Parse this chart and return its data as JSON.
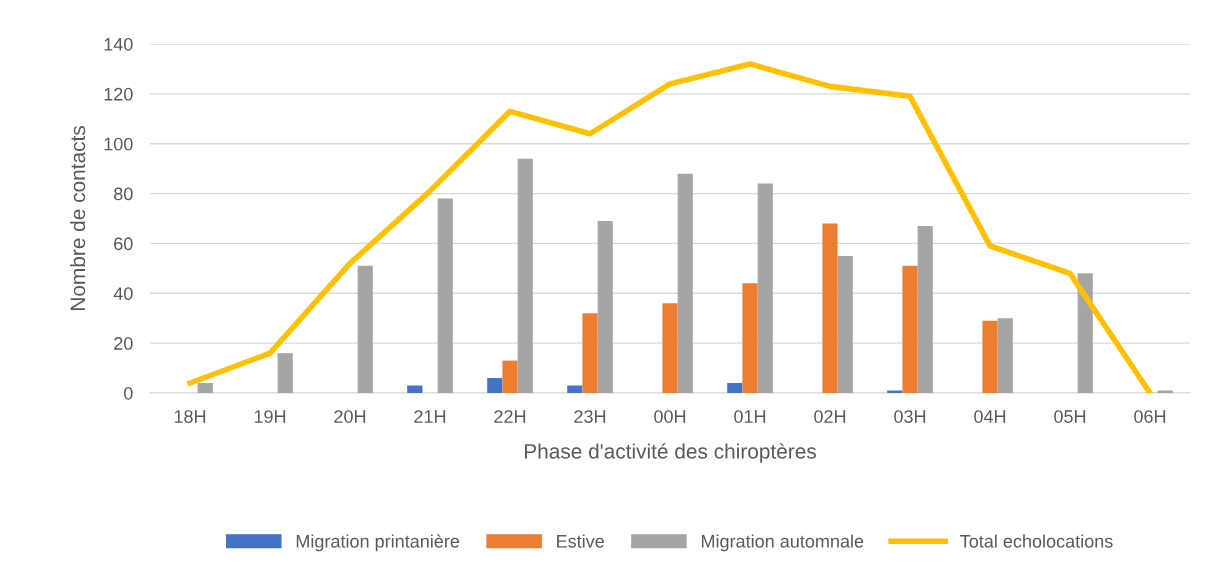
{
  "chart_data": {
    "type": "bar",
    "xlabel": "Phase d'activité des chiroptères",
    "ylabel": "Nombre de contacts",
    "categories": [
      "18H",
      "19H",
      "20H",
      "21H",
      "22H",
      "23H",
      "00H",
      "01H",
      "02H",
      "03H",
      "04H",
      "05H",
      "06H"
    ],
    "series": [
      {
        "name": "Migration printanière",
        "color": "#4472c4",
        "values": [
          0,
          0,
          0,
          3,
          6,
          3,
          0,
          4,
          0,
          1,
          0,
          0,
          0
        ]
      },
      {
        "name": "Estive",
        "color": "#ed7d31",
        "values": [
          0,
          0,
          0,
          0,
          13,
          32,
          36,
          44,
          68,
          51,
          29,
          0,
          0
        ]
      },
      {
        "name": "Migration automnale",
        "color": "#a5a5a5",
        "values": [
          4,
          16,
          51,
          78,
          94,
          69,
          88,
          84,
          55,
          67,
          30,
          48,
          1
        ]
      },
      {
        "name": "Total echolocations",
        "color": "#ffc000",
        "type": "line",
        "values": [
          4,
          16,
          52,
          81,
          113,
          104,
          124,
          132,
          123,
          119,
          59,
          48,
          0
        ]
      }
    ],
    "ylim": [
      0,
      140
    ],
    "yticks": [
      0,
      20,
      40,
      60,
      80,
      100,
      120,
      140
    ],
    "grid": "y",
    "legend": "bottom",
    "marker": "none",
    "line_style": "solid"
  }
}
